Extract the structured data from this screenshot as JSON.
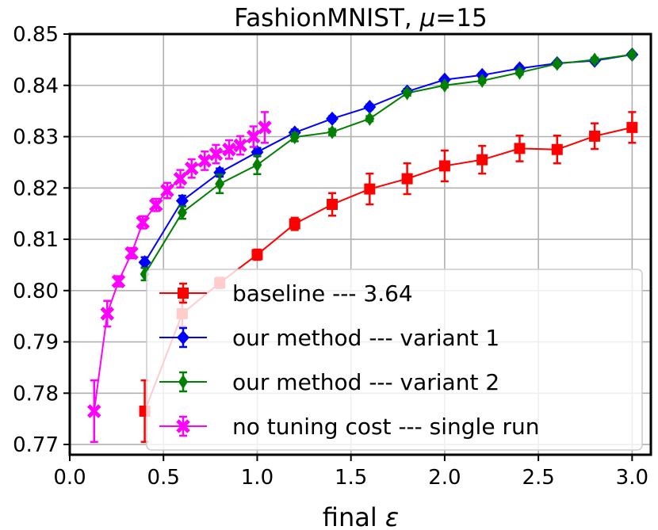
{
  "chart_data": {
    "type": "line",
    "title_prefix": "FashionMNIST, ",
    "title_mu": "μ",
    "title_suffix": "=15",
    "xlabel_prefix": "final ",
    "xlabel_symbol": "ε",
    "ylabel": "",
    "xlim": [
      0.0,
      3.1
    ],
    "ylim": [
      0.768,
      0.85
    ],
    "xticks": [
      0.0,
      0.5,
      1.0,
      1.5,
      2.0,
      2.5,
      3.0
    ],
    "xtick_labels": [
      "0.0",
      "0.5",
      "1.0",
      "1.5",
      "2.0",
      "2.5",
      "3.0"
    ],
    "yticks": [
      0.77,
      0.78,
      0.79,
      0.8,
      0.81,
      0.82,
      0.83,
      0.84,
      0.85
    ],
    "ytick_labels": [
      "0.77",
      "0.78",
      "0.79",
      "0.80",
      "0.81",
      "0.82",
      "0.83",
      "0.84",
      "0.85"
    ],
    "grid": true,
    "legend_position": "lower-right",
    "series": [
      {
        "name": "baseline --- 3.64",
        "color": "#ff0000",
        "marker": "square",
        "x": [
          0.4,
          0.6,
          0.8,
          1.0,
          1.2,
          1.4,
          1.6,
          1.8,
          2.0,
          2.2,
          2.4,
          2.6,
          2.8,
          3.0
        ],
        "y": [
          0.7765,
          0.7955,
          0.8015,
          0.807,
          0.813,
          0.8168,
          0.8198,
          0.8218,
          0.8243,
          0.8255,
          0.8277,
          0.8275,
          0.8301,
          0.8318
        ],
        "err": [
          0.006,
          0.0025,
          0.001,
          0.001,
          0.0012,
          0.0022,
          0.003,
          0.003,
          0.003,
          0.0027,
          0.0025,
          0.0027,
          0.0025,
          0.003
        ]
      },
      {
        "name": "our method --- variant 1",
        "color": "#0000ff",
        "marker": "diamond",
        "x": [
          0.4,
          0.6,
          0.8,
          1.0,
          1.2,
          1.4,
          1.6,
          1.8,
          2.0,
          2.2,
          2.4,
          2.6,
          2.8,
          3.0
        ],
        "y": [
          0.8055,
          0.8175,
          0.823,
          0.827,
          0.8308,
          0.8335,
          0.8358,
          0.8388,
          0.8411,
          0.842,
          0.8433,
          0.8443,
          0.8448,
          0.846
        ],
        "err": [
          0.001,
          0.001,
          0.0008,
          0.0008,
          0.0006,
          0.0005,
          0.0005,
          0.0005,
          0.0004,
          0.0004,
          0.0004,
          0.0004,
          0.0004,
          0.0004
        ]
      },
      {
        "name": "our method --- variant 2",
        "color": "#008000",
        "marker": "thin-diamond",
        "x": [
          0.4,
          0.6,
          0.8,
          1.0,
          1.2,
          1.4,
          1.6,
          1.8,
          2.0,
          2.2,
          2.4,
          2.6,
          2.8,
          3.0
        ],
        "y": [
          0.8032,
          0.8152,
          0.8208,
          0.8245,
          0.8299,
          0.8309,
          0.8335,
          0.8385,
          0.84,
          0.8409,
          0.8425,
          0.8442,
          0.845,
          0.846
        ],
        "err": [
          0.0012,
          0.0012,
          0.0018,
          0.0018,
          0.0008,
          0.0006,
          0.0005,
          0.0005,
          0.0004,
          0.0004,
          0.0004,
          0.0004,
          0.0004,
          0.0004
        ]
      },
      {
        "name": "no tuning cost --- single run",
        "color": "#ff00ff",
        "marker": "x",
        "x": [
          0.13,
          0.2,
          0.26,
          0.33,
          0.39,
          0.46,
          0.52,
          0.59,
          0.65,
          0.72,
          0.78,
          0.85,
          0.91,
          0.98,
          1.04
        ],
        "y": [
          0.7765,
          0.7955,
          0.8018,
          0.8073,
          0.8133,
          0.8167,
          0.8195,
          0.8218,
          0.8238,
          0.8253,
          0.8266,
          0.8275,
          0.8283,
          0.83,
          0.8318
        ],
        "err": [
          0.006,
          0.0025,
          0.001,
          0.001,
          0.0012,
          0.0012,
          0.0015,
          0.0017,
          0.0018,
          0.0018,
          0.0018,
          0.0018,
          0.0018,
          0.002,
          0.003
        ]
      }
    ]
  }
}
